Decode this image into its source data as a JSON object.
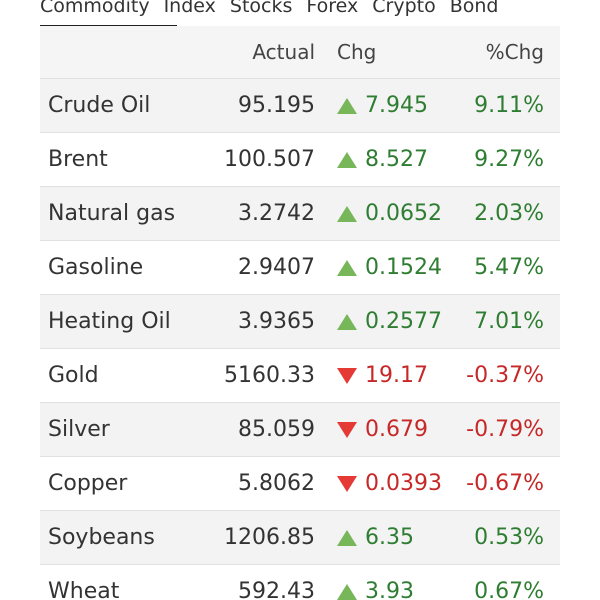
{
  "tabs": [
    {
      "label": "Commodity"
    },
    {
      "label": "Index"
    },
    {
      "label": "Stocks"
    },
    {
      "label": "Forex"
    },
    {
      "label": "Crypto"
    },
    {
      "label": "Bond"
    }
  ],
  "table": {
    "headers": {
      "name": "",
      "actual": "Actual",
      "chg": "Chg",
      "pct": "%Chg"
    },
    "rows": [
      {
        "name": "Crude Oil",
        "actual": "95.195",
        "chg": "7.945",
        "pct": "9.11%",
        "direction": "up"
      },
      {
        "name": "Brent",
        "actual": "100.507",
        "chg": "8.527",
        "pct": "9.27%",
        "direction": "up"
      },
      {
        "name": "Natural gas",
        "actual": "3.2742",
        "chg": "0.0652",
        "pct": "2.03%",
        "direction": "up"
      },
      {
        "name": "Gasoline",
        "actual": "2.9407",
        "chg": "0.1524",
        "pct": "5.47%",
        "direction": "up"
      },
      {
        "name": "Heating Oil",
        "actual": "3.9365",
        "chg": "0.2577",
        "pct": "7.01%",
        "direction": "up"
      },
      {
        "name": "Gold",
        "actual": "5160.33",
        "chg": "19.17",
        "pct": "-0.37%",
        "direction": "down"
      },
      {
        "name": "Silver",
        "actual": "85.059",
        "chg": "0.679",
        "pct": "-0.79%",
        "direction": "down"
      },
      {
        "name": "Copper",
        "actual": "5.8062",
        "chg": "0.0393",
        "pct": "-0.67%",
        "direction": "down"
      },
      {
        "name": "Soybeans",
        "actual": "1206.85",
        "chg": "6.35",
        "pct": "0.53%",
        "direction": "up"
      },
      {
        "name": "Wheat",
        "actual": "592.43",
        "chg": "3.93",
        "pct": "0.67%",
        "direction": "up"
      }
    ]
  },
  "colors": {
    "up": "#2e7d32",
    "down": "#c62828",
    "up_arrow": "#78b65a",
    "down_arrow": "#e53935",
    "row_alt": "#f3f3f3"
  },
  "icons": {
    "up": "up-triangle-icon",
    "down": "down-triangle-icon"
  }
}
